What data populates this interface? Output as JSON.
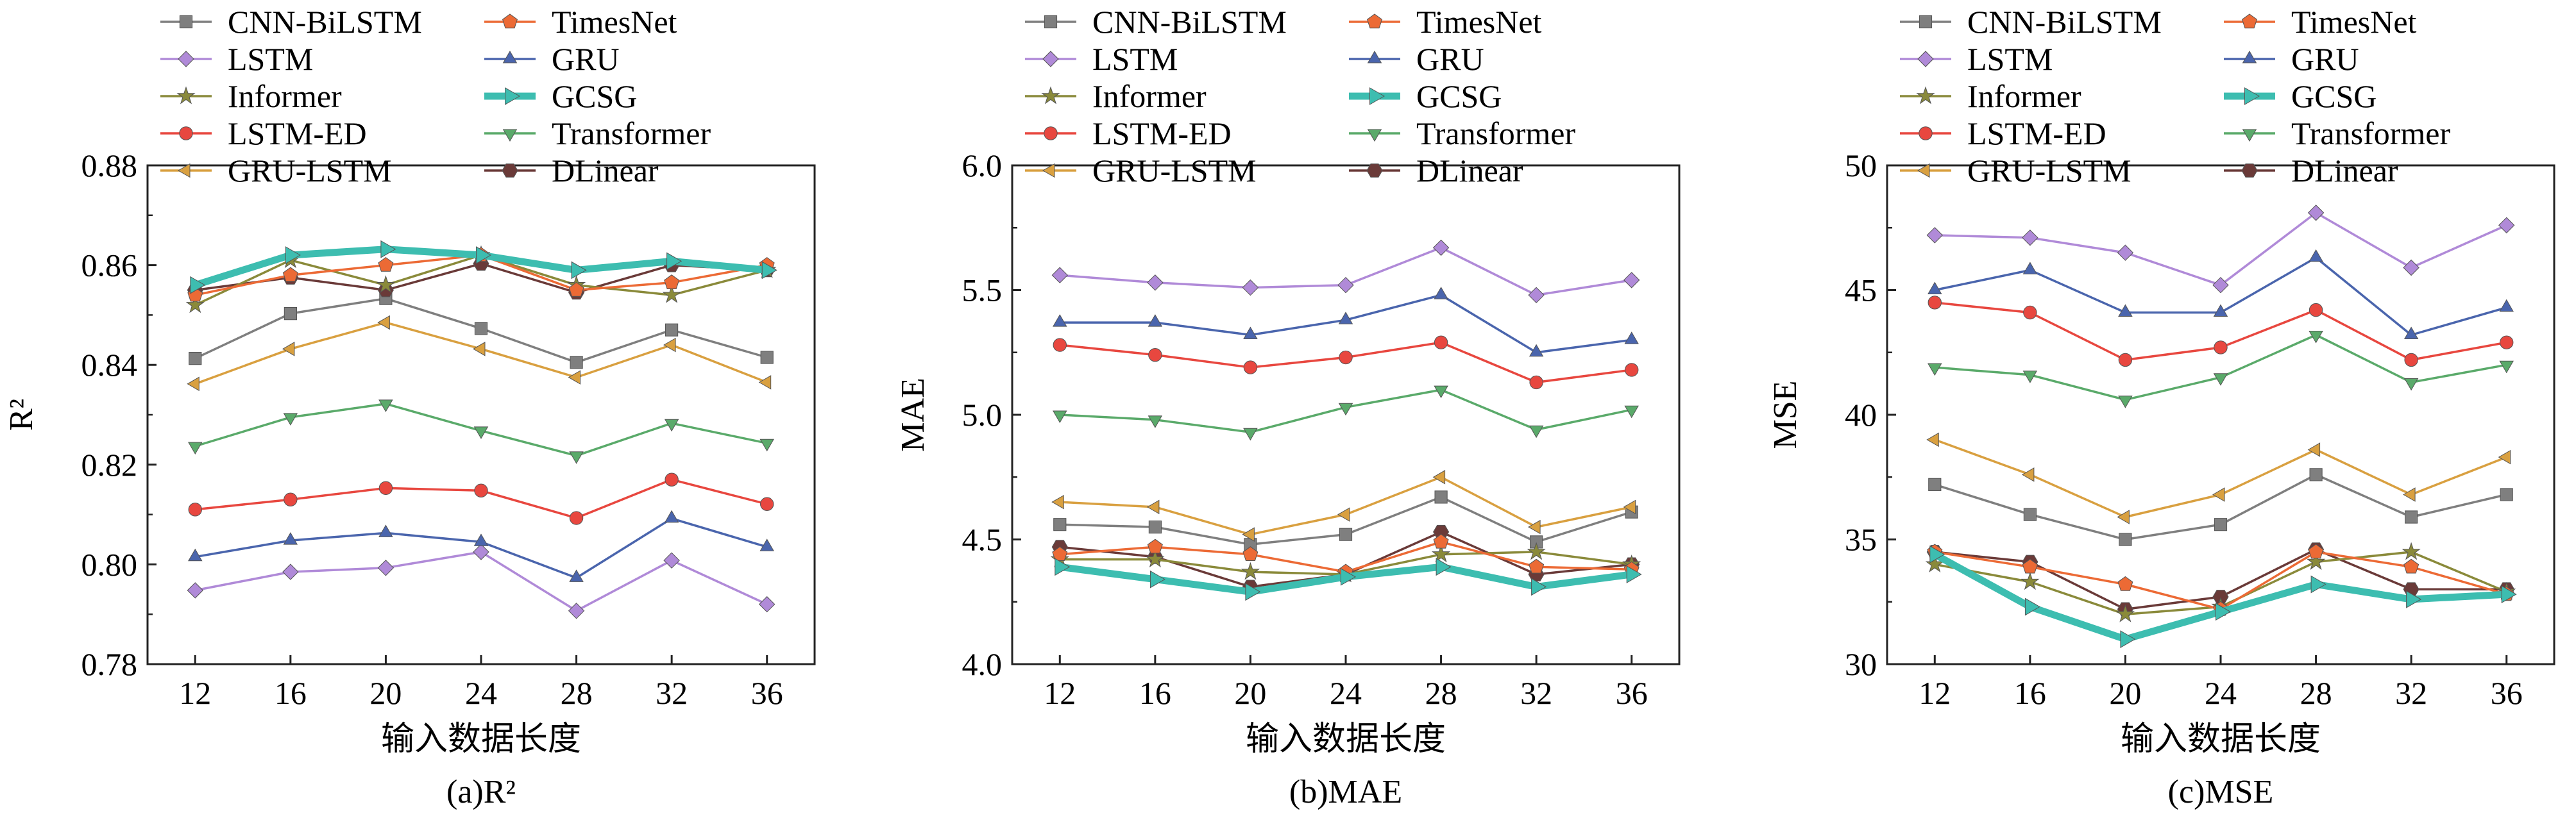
{
  "chart_data": [
    {
      "type": "line",
      "panel_caption": "(a)R²",
      "xlabel": "输入数据长度",
      "ylabel": "R²",
      "x": [
        12,
        16,
        20,
        24,
        28,
        32,
        36
      ],
      "ylim": [
        0.78,
        0.88
      ],
      "yticks": [
        "0.78",
        "0.80",
        "0.82",
        "0.84",
        "0.86",
        "0.88"
      ],
      "grid": false,
      "legend_position": "top",
      "series": [
        {
          "name": "CNN-BiLSTM",
          "values": [
            0.8413,
            0.8503,
            0.8533,
            0.8473,
            0.8405,
            0.847,
            0.8415
          ]
        },
        {
          "name": "LSTM",
          "values": [
            0.7948,
            0.7985,
            0.7993,
            0.8025,
            0.7907,
            0.8008,
            0.792
          ]
        },
        {
          "name": "Informer",
          "values": [
            0.852,
            0.861,
            0.856,
            0.862,
            0.856,
            0.854,
            0.859
          ]
        },
        {
          "name": "LSTM-ED",
          "values": [
            0.811,
            0.813,
            0.8153,
            0.8148,
            0.8093,
            0.817,
            0.8121
          ]
        },
        {
          "name": "GRU-LSTM",
          "values": [
            0.8362,
            0.8432,
            0.8485,
            0.8432,
            0.8375,
            0.844,
            0.8365
          ]
        },
        {
          "name": "TimesNet",
          "values": [
            0.854,
            0.858,
            0.86,
            0.862,
            0.855,
            0.8565,
            0.86
          ]
        },
        {
          "name": "GRU",
          "values": [
            0.8015,
            0.8048,
            0.8063,
            0.8045,
            0.7973,
            0.8092,
            0.8035
          ]
        },
        {
          "name": "GCSG",
          "values": [
            0.856,
            0.862,
            0.8632,
            0.862,
            0.859,
            0.8608,
            0.859
          ]
        },
        {
          "name": "Transformer",
          "values": [
            0.8237,
            0.8295,
            0.8322,
            0.8268,
            0.8218,
            0.8283,
            0.8243
          ]
        },
        {
          "name": "DLinear",
          "values": [
            0.855,
            0.8575,
            0.855,
            0.8603,
            0.8545,
            0.86,
            0.859
          ]
        }
      ]
    },
    {
      "type": "line",
      "panel_caption": "(b)MAE",
      "xlabel": "输入数据长度",
      "ylabel": "MAE",
      "x": [
        12,
        16,
        20,
        24,
        28,
        32,
        36
      ],
      "ylim": [
        4.0,
        6.0
      ],
      "yticks": [
        "4.0",
        "4.5",
        "5.0",
        "5.5",
        "6.0"
      ],
      "grid": false,
      "legend_position": "top",
      "series": [
        {
          "name": "CNN-BiLSTM",
          "values": [
            4.56,
            4.55,
            4.48,
            4.52,
            4.67,
            4.49,
            4.61
          ]
        },
        {
          "name": "LSTM",
          "values": [
            5.56,
            5.53,
            5.51,
            5.52,
            5.67,
            5.48,
            5.54
          ]
        },
        {
          "name": "Informer",
          "values": [
            4.42,
            4.42,
            4.37,
            4.36,
            4.44,
            4.45,
            4.4
          ]
        },
        {
          "name": "LSTM-ED",
          "values": [
            5.28,
            5.24,
            5.19,
            5.23,
            5.29,
            5.13,
            5.18
          ]
        },
        {
          "name": "GRU-LSTM",
          "values": [
            4.65,
            4.63,
            4.52,
            4.6,
            4.75,
            4.55,
            4.63
          ]
        },
        {
          "name": "TimesNet",
          "values": [
            4.44,
            4.47,
            4.44,
            4.37,
            4.49,
            4.39,
            4.38
          ]
        },
        {
          "name": "GRU",
          "values": [
            5.37,
            5.37,
            5.32,
            5.38,
            5.48,
            5.25,
            5.3
          ]
        },
        {
          "name": "GCSG",
          "values": [
            4.39,
            4.34,
            4.29,
            4.35,
            4.39,
            4.31,
            4.36
          ]
        },
        {
          "name": "Transformer",
          "values": [
            5.0,
            4.98,
            4.93,
            5.03,
            5.1,
            4.94,
            5.02
          ]
        },
        {
          "name": "DLinear",
          "values": [
            4.47,
            4.43,
            4.31,
            4.36,
            4.53,
            4.36,
            4.4
          ]
        }
      ]
    },
    {
      "type": "line",
      "panel_caption": "(c)MSE",
      "xlabel": "输入数据长度",
      "ylabel": "MSE",
      "x": [
        12,
        16,
        20,
        24,
        28,
        32,
        36
      ],
      "ylim": [
        30,
        50
      ],
      "yticks": [
        "30",
        "35",
        "40",
        "45",
        "50"
      ],
      "grid": false,
      "legend_position": "top",
      "series": [
        {
          "name": "CNN-BiLSTM",
          "values": [
            37.2,
            36.0,
            35.0,
            35.6,
            37.6,
            35.9,
            36.8
          ]
        },
        {
          "name": "LSTM",
          "values": [
            47.2,
            47.1,
            46.5,
            45.2,
            48.1,
            45.9,
            47.6
          ]
        },
        {
          "name": "Informer",
          "values": [
            34.0,
            33.3,
            32.0,
            32.3,
            34.1,
            34.5,
            32.9
          ]
        },
        {
          "name": "LSTM-ED",
          "values": [
            44.5,
            44.1,
            42.2,
            42.7,
            44.2,
            42.2,
            42.9
          ]
        },
        {
          "name": "GRU-LSTM",
          "values": [
            39.0,
            37.6,
            35.9,
            36.8,
            38.6,
            36.8,
            38.3
          ]
        },
        {
          "name": "TimesNet",
          "values": [
            34.5,
            33.9,
            33.2,
            32.2,
            34.5,
            33.9,
            32.8
          ]
        },
        {
          "name": "GRU",
          "values": [
            45.0,
            45.8,
            44.1,
            44.1,
            46.3,
            43.2,
            44.3
          ]
        },
        {
          "name": "GCSG",
          "values": [
            34.4,
            32.3,
            31.0,
            32.1,
            33.2,
            32.6,
            32.8
          ]
        },
        {
          "name": "Transformer",
          "values": [
            41.9,
            41.6,
            40.6,
            41.5,
            43.2,
            41.3,
            42.0
          ]
        },
        {
          "name": "DLinear",
          "values": [
            34.5,
            34.1,
            32.2,
            32.7,
            34.6,
            33.0,
            33.0
          ]
        }
      ]
    }
  ],
  "series_styles": [
    {
      "name": "CNN-BiLSTM",
      "color": "#7f7f7f",
      "marker": "square"
    },
    {
      "name": "LSTM",
      "color": "#b08ad8",
      "marker": "diamond"
    },
    {
      "name": "Informer",
      "color": "#8a8a3a",
      "marker": "star"
    },
    {
      "name": "LSTM-ED",
      "color": "#e8473f",
      "marker": "circle"
    },
    {
      "name": "GRU-LSTM",
      "color": "#d9a040",
      "marker": "triangle-left"
    },
    {
      "name": "TimesNet",
      "color": "#ec6a35",
      "marker": "pentagon"
    },
    {
      "name": "GRU",
      "color": "#4a65ad",
      "marker": "triangle-up"
    },
    {
      "name": "GCSG",
      "color": "#3dbdb0",
      "marker": "triangle-right"
    },
    {
      "name": "Transformer",
      "color": "#5aaa6a",
      "marker": "triangle-down"
    },
    {
      "name": "DLinear",
      "color": "#6a3a38",
      "marker": "hexagon"
    }
  ],
  "legend_order": [
    [
      "CNN-BiLSTM",
      "TimesNet"
    ],
    [
      "LSTM",
      "GRU"
    ],
    [
      "Informer",
      "GCSG"
    ],
    [
      "LSTM-ED",
      "Transformer"
    ],
    [
      "GRU-LSTM",
      "DLinear"
    ]
  ]
}
